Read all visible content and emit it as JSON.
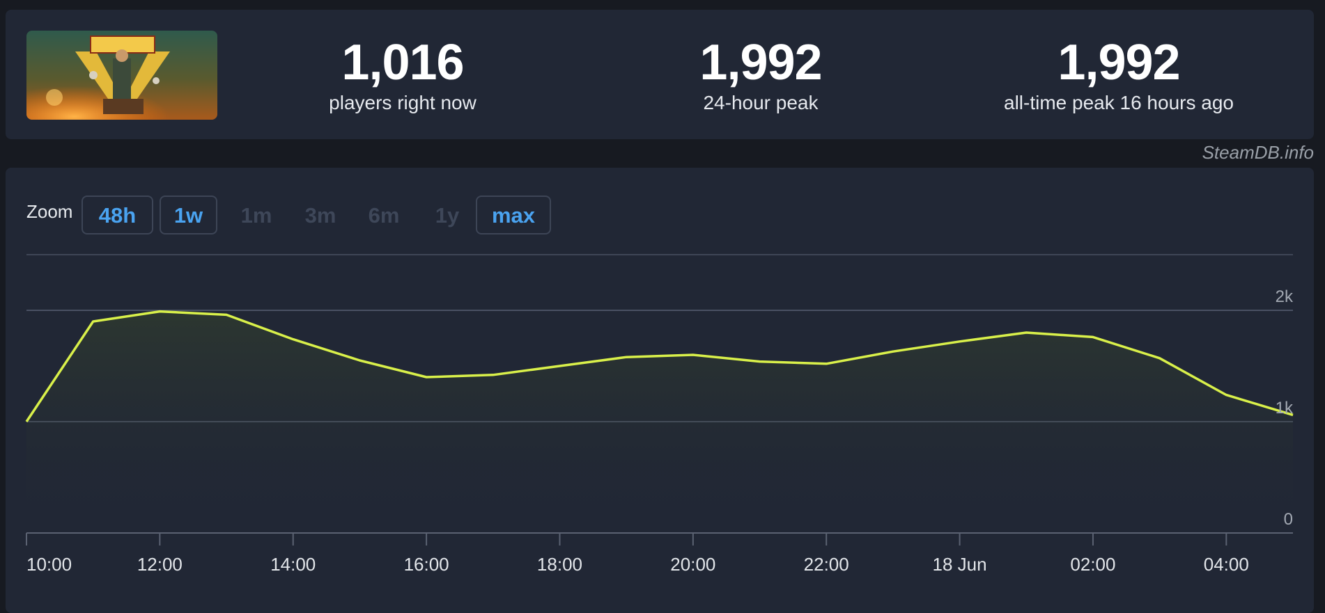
{
  "stats": {
    "current": {
      "value": "1,016",
      "label": "players right now"
    },
    "peak24": {
      "value": "1,992",
      "label": "24-hour peak"
    },
    "alltime": {
      "value": "1,992",
      "label": "all-time peak 16 hours ago"
    }
  },
  "brand": "SteamDB.info",
  "zoom": {
    "label": "Zoom",
    "buttons": [
      {
        "label": "48h",
        "state": "active"
      },
      {
        "label": "1w",
        "state": "active"
      },
      {
        "label": "1m",
        "state": "disabled"
      },
      {
        "label": "3m",
        "state": "disabled"
      },
      {
        "label": "6m",
        "state": "disabled"
      },
      {
        "label": "1y",
        "state": "disabled"
      },
      {
        "label": "max",
        "state": "active"
      }
    ]
  },
  "colors": {
    "line": "#d9f04a",
    "active_button": "#4aa3f0",
    "disabled_button": "#3e4759",
    "panel": "#212735",
    "background": "#171a21"
  },
  "chart_data": {
    "type": "area",
    "x_unit": "hour",
    "x": [
      10,
      11,
      12,
      13,
      14,
      15,
      16,
      17,
      18,
      19,
      20,
      21,
      22,
      23,
      24,
      25,
      26,
      27,
      28,
      29
    ],
    "series": [
      {
        "values": [
          1000,
          1900,
          1990,
          1960,
          1740,
          1550,
          1400,
          1420,
          1500,
          1580,
          1600,
          1540,
          1520,
          1630,
          1720,
          1800,
          1760,
          1570,
          1240,
          1060
        ]
      }
    ],
    "ylim": [
      0,
      2500
    ],
    "y_ticks": [
      {
        "value": 0,
        "label": "0"
      },
      {
        "value": 1000,
        "label": "1k"
      },
      {
        "value": 2000,
        "label": "2k"
      }
    ],
    "x_ticks": [
      {
        "x": 10,
        "label": "10:00"
      },
      {
        "x": 12,
        "label": "12:00"
      },
      {
        "x": 14,
        "label": "14:00"
      },
      {
        "x": 16,
        "label": "16:00"
      },
      {
        "x": 18,
        "label": "18:00"
      },
      {
        "x": 20,
        "label": "20:00"
      },
      {
        "x": 22,
        "label": "22:00"
      },
      {
        "x": 24,
        "label": "18 Jun"
      },
      {
        "x": 26,
        "label": "02:00"
      },
      {
        "x": 28,
        "label": "04:00"
      }
    ],
    "grid": true,
    "legend": "none"
  }
}
